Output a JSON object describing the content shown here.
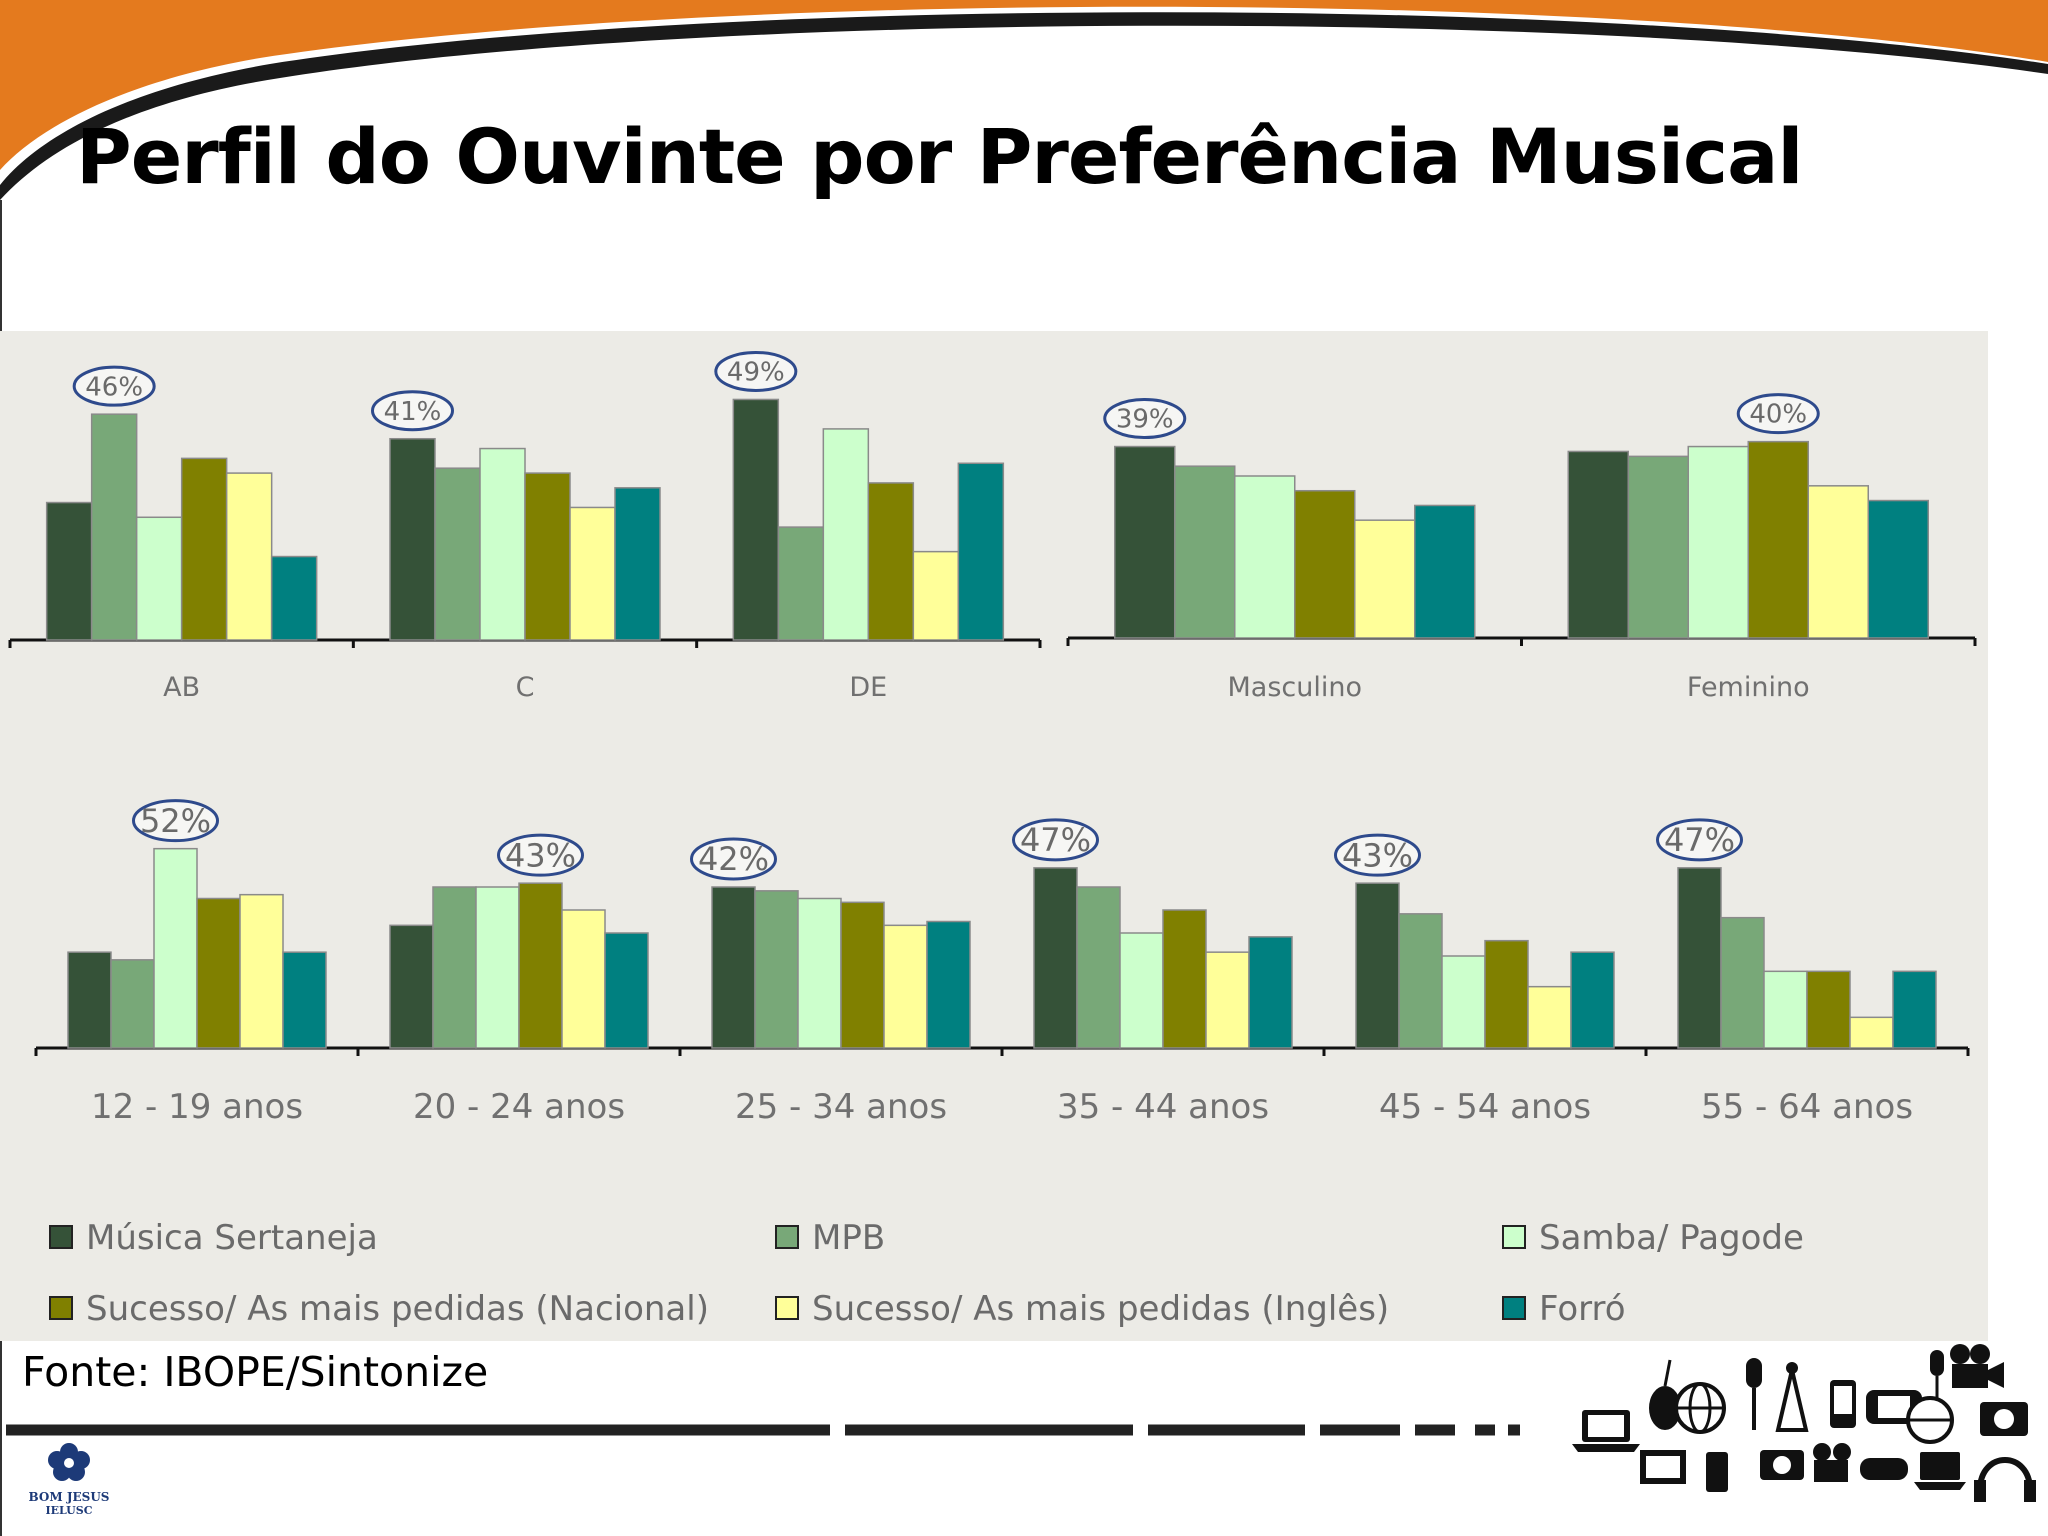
{
  "slide": {
    "title": "Perfil do Ouvinte por Preferência Musical",
    "source": "Fonte: IBOPE/Sintonize",
    "logo": {
      "name_line1": "BOM JESUS",
      "name_line2": "IELUSC"
    },
    "colors": {
      "banner": "#e47a1e",
      "banner_shadow": "#1a1a1a",
      "chart_background": "#ecebe6",
      "dash_line": "#222222"
    }
  },
  "chart_data": {
    "type": "bar",
    "series": [
      {
        "name": "Música Sertaneja",
        "color": "#355238"
      },
      {
        "name": "MPB",
        "color": "#78a878"
      },
      {
        "name": "Samba/ Pagode",
        "color": "#ccffcc"
      },
      {
        "name": "Sucesso/ As mais pedidas (Nacional)",
        "color": "#808000"
      },
      {
        "name": "Sucesso/ As mais pedidas (Inglês)",
        "color": "#ffff99"
      },
      {
        "name": "Forró",
        "color": "#008080"
      }
    ],
    "legend_placement": "bottom",
    "panels": [
      {
        "id": "classe",
        "ylim": [
          0,
          55
        ],
        "groups": [
          {
            "category": "AB",
            "values": [
              28,
              46,
              25,
              37,
              34,
              17
            ],
            "callout": "46%",
            "callout_series": 1
          },
          {
            "category": "C",
            "values": [
              41,
              35,
              39,
              34,
              27,
              31
            ],
            "callout": "41%",
            "callout_series": 0
          },
          {
            "category": "DE",
            "values": [
              49,
              23,
              43,
              32,
              18,
              36
            ],
            "callout": "49%",
            "callout_series": 0
          }
        ]
      },
      {
        "id": "sexo",
        "ylim": [
          0,
          55
        ],
        "groups": [
          {
            "category": "Masculino",
            "values": [
              39,
              35,
              33,
              30,
              24,
              27
            ],
            "callout": "39%",
            "callout_series": 0
          },
          {
            "category": "Feminino",
            "values": [
              38,
              37,
              39,
              40,
              31,
              28
            ],
            "callout": "40%",
            "callout_series": 3
          }
        ]
      },
      {
        "id": "idade",
        "ylim": [
          0,
          60
        ],
        "groups": [
          {
            "category": "12 - 19 anos",
            "values": [
              25,
              23,
              52,
              39,
              40,
              25
            ],
            "callout": "52%",
            "callout_series": 2
          },
          {
            "category": "20 - 24 anos",
            "values": [
              32,
              42,
              42,
              43,
              36,
              30
            ],
            "callout": "43%",
            "callout_series": 3
          },
          {
            "category": "25 - 34 anos",
            "values": [
              42,
              41,
              39,
              38,
              32,
              33
            ],
            "callout": "42%",
            "callout_series": 0
          },
          {
            "category": "35 - 44 anos",
            "values": [
              47,
              42,
              30,
              36,
              25,
              29
            ],
            "callout": "47%",
            "callout_series": 0
          },
          {
            "category": "45 - 54 anos",
            "values": [
              43,
              35,
              24,
              28,
              16,
              25
            ],
            "callout": "43%",
            "callout_series": 0
          },
          {
            "category": "55 - 64 anos",
            "values": [
              47,
              34,
              20,
              20,
              8,
              20
            ],
            "callout": "47%",
            "callout_series": 0
          }
        ]
      }
    ]
  }
}
